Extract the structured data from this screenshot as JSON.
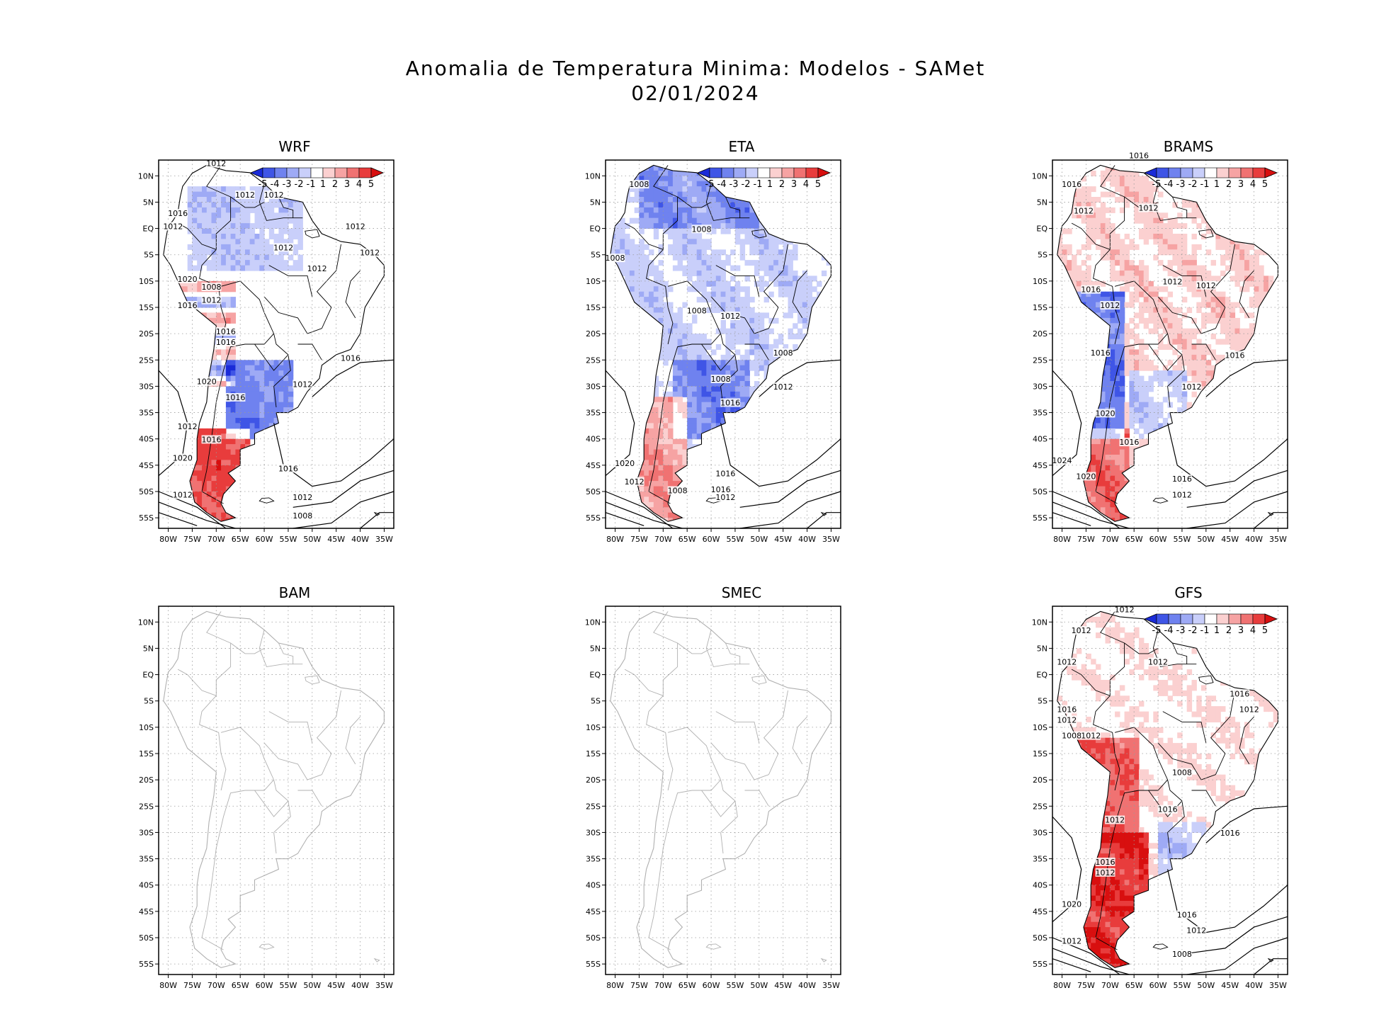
{
  "figure": {
    "title_line1": "Anomalia de Temperatura Minima: Modelos - SAMet",
    "title_line2": "02/01/2024"
  },
  "axes": {
    "lon_ticks": [
      "80W",
      "75W",
      "70W",
      "65W",
      "60W",
      "55W",
      "50W",
      "45W",
      "40W",
      "35W"
    ],
    "lat_ticks": [
      "10N",
      "5N",
      "EQ",
      "5S",
      "10S",
      "15S",
      "20S",
      "25S",
      "30S",
      "35S",
      "40S",
      "45S",
      "50S",
      "55S"
    ]
  },
  "colorbar": {
    "labels": [
      "-5",
      "-4",
      "-3",
      "-2",
      "-1",
      "1",
      "2",
      "3",
      "4",
      "5"
    ],
    "colors": [
      "#1a2bd8",
      "#3f55e6",
      "#6f82ef",
      "#9eaaf5",
      "#c9cffa",
      "#ffffff",
      "#fbd0d0",
      "#f6a3a3",
      "#f07272",
      "#e83c3c",
      "#d80f0f"
    ]
  },
  "colors": {
    "land_outline": "#000000",
    "land_outline_empty": "#b0b0b0",
    "grid": "#9a9a9a",
    "isobar": "#000000"
  },
  "panels": [
    {
      "id": "wrf",
      "name": "WRF",
      "has_data": true,
      "isobar_labels": [
        "1012",
        "1012",
        "1016",
        "1012",
        "1012",
        "1012",
        "1012",
        "1012",
        "1012",
        "1020",
        "1008",
        "1012",
        "1016",
        "1016",
        "1016",
        "1016",
        "1020",
        "1012",
        "1016",
        "1012",
        "1016",
        "1020",
        "1016",
        "1012",
        "1012",
        "1008"
      ]
    },
    {
      "id": "eta",
      "name": "ETA",
      "has_data": true,
      "isobar_labels": [
        "1008",
        "1008",
        "1008",
        "1008",
        "1012",
        "1008",
        "1012",
        "1016",
        "1008",
        "1020",
        "1016",
        "1012",
        "1008",
        "1016",
        "1012"
      ]
    },
    {
      "id": "brams",
      "name": "BRAMS",
      "has_data": true,
      "isobar_labels": [
        "1016",
        "1016",
        "1012",
        "1012",
        "1012",
        "1012",
        "1016",
        "1012",
        "1016",
        "1016",
        "1012",
        "1020",
        "1016",
        "1024",
        "1020",
        "1016",
        "1012"
      ]
    },
    {
      "id": "bam",
      "name": "BAM",
      "has_data": false,
      "isobar_labels": []
    },
    {
      "id": "smec",
      "name": "SMEC",
      "has_data": false,
      "isobar_labels": []
    },
    {
      "id": "gfs",
      "name": "GFS",
      "has_data": true,
      "isobar_labels": [
        "1012",
        "1012",
        "1012",
        "1012",
        "1016",
        "1016",
        "1012",
        "1012",
        "1008",
        "1012",
        "1008",
        "1016",
        "1012",
        "1016",
        "1016",
        "1012",
        "1020",
        "1016",
        "1012",
        "1012",
        "1008"
      ]
    }
  ]
}
